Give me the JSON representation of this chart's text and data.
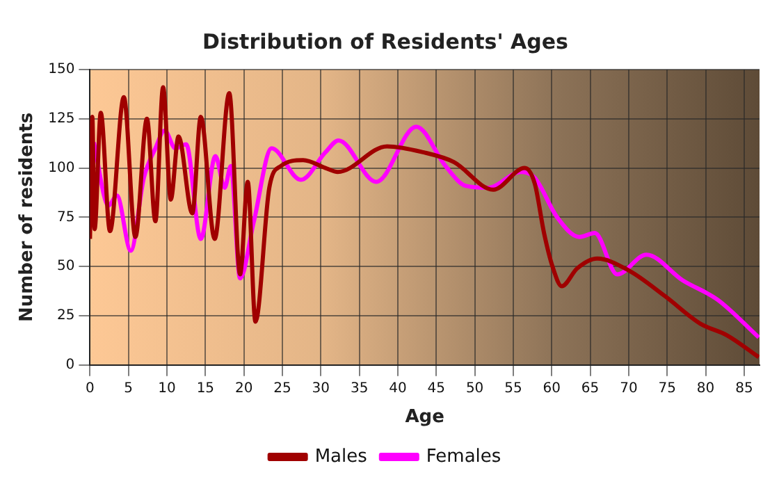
{
  "chart_data": {
    "type": "line",
    "title": "Distribution of Residents' Ages",
    "xlabel": "Age",
    "ylabel": "Number of residents",
    "xlim": [
      0,
      87
    ],
    "xticks": [
      0,
      5,
      10,
      15,
      20,
      25,
      30,
      35,
      40,
      45,
      50,
      55,
      60,
      65,
      70,
      75,
      80,
      85
    ],
    "ylim": [
      0,
      150
    ],
    "yticks": [
      0,
      25,
      50,
      75,
      100,
      125,
      150
    ],
    "grid": true,
    "legend": "bottom",
    "marker": "none",
    "line_style": "solid",
    "series": [
      {
        "name": "Males",
        "color": "#a00000",
        "x": [
          0,
          0.3,
          0.6,
          1.4,
          2.6,
          4.4,
          5.9,
          7.4,
          8.5,
          9.5,
          10.5,
          11.5,
          13.3,
          14.4,
          16.2,
          18.1,
          19.5,
          20.5,
          21.5,
          23.3,
          24.8,
          27.7,
          30.6,
          32.2,
          38.6,
          43.3,
          47.3,
          52.4,
          56.5,
          57.8,
          59,
          60.1,
          61.3,
          63.3,
          65.9,
          70,
          74.7,
          79.3,
          82.8,
          86.9
        ],
        "values": [
          64,
          126,
          69,
          128,
          68,
          136,
          65,
          125,
          73,
          141,
          84,
          116,
          77,
          126,
          64,
          138,
          46,
          93,
          22,
          90,
          101,
          104,
          100,
          98,
          111,
          108,
          103,
          89,
          100,
          92,
          67,
          50,
          40,
          49,
          54,
          48,
          35,
          21,
          15,
          4
        ]
      },
      {
        "name": "Females",
        "color": "#ff00ff",
        "x": [
          0.5,
          2.4,
          3.5,
          5.3,
          7,
          8.5,
          9.7,
          11.1,
          12.5,
          14.4,
          16.3,
          17.5,
          18.3,
          19.5,
          21.3,
          23.6,
          27.4,
          30.6,
          32.3,
          37.2,
          42.4,
          46.2,
          48.8,
          51.7,
          56,
          57.8,
          60.7,
          63.6,
          65.6,
          68.5,
          72.3,
          77,
          81.6,
          86.9
        ],
        "values": [
          113,
          81,
          86,
          58,
          95,
          110,
          119,
          110,
          112,
          64,
          106,
          90,
          101,
          44,
          73,
          110,
          94,
          108,
          114,
          93,
          121,
          101,
          91,
          90,
          98,
          95,
          75,
          65,
          67,
          46,
          56,
          43,
          33,
          14
        ]
      }
    ]
  }
}
